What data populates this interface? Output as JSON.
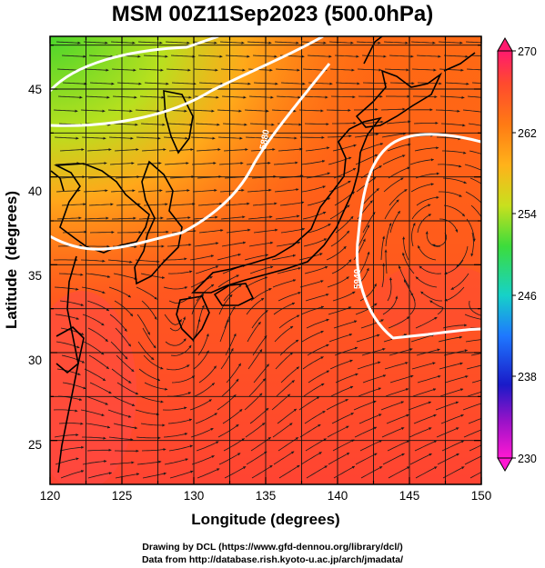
{
  "title": "MSM 00Z11Sep2023 (500.0hPa)",
  "map": {
    "x_axis_label": "Longitude (degrees)",
    "y_axis_label": "Latitude  (degrees)",
    "lon_range": [
      120,
      150
    ],
    "lat_range": [
      22.5,
      48
    ],
    "x_ticks": [
      "120",
      "125",
      "130",
      "135",
      "140",
      "145",
      "150"
    ],
    "y_ticks": [
      "25",
      "30",
      "35",
      "40",
      "45"
    ],
    "contour_labels": [
      "5880",
      "5940"
    ],
    "colorbar": {
      "range": [
        230,
        270
      ],
      "tick_labels": [
        "270",
        "262",
        "254",
        "246",
        "238",
        "230"
      ],
      "colors": [
        "#ff1a6e",
        "#ff4a2e",
        "#ff7a14",
        "#ffb21a",
        "#c8e01e",
        "#3cdc3c",
        "#16d2c8",
        "#1e78ff",
        "#2030e0",
        "#1a1ac8",
        "#9a12c8",
        "#ff18d2"
      ]
    }
  },
  "credits": {
    "line1": "Drawing by DCL (https://www.gfd-dennou.org/library/dcl/)",
    "line2": "Data from http://database.rish.kyoto-u.ac.jp/arch/jmadata/"
  }
}
